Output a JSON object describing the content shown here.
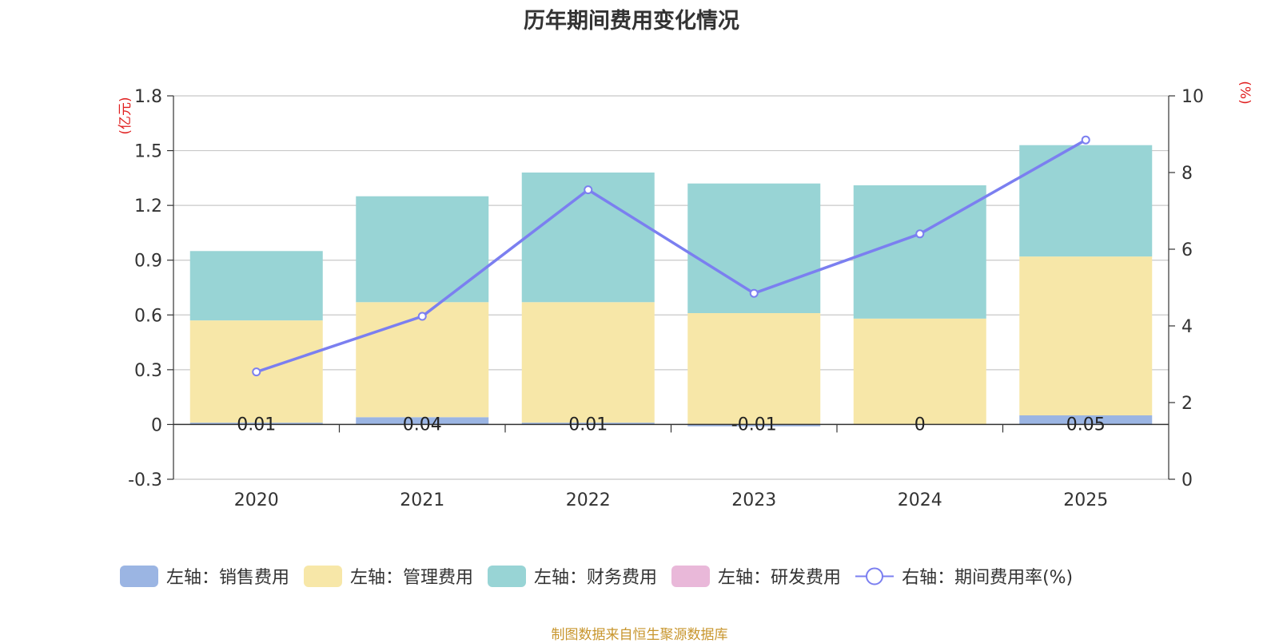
{
  "title": "历年期间费用变化情况",
  "source_note": "制图数据来自恒生聚源数据库",
  "chart_data": {
    "type": "bar",
    "stacked": true,
    "title": "历年期间费用变化情况",
    "categories": [
      "2020",
      "2021",
      "2022",
      "2023",
      "2024",
      "2025"
    ],
    "left_axis": {
      "unit_label": "(亿元)",
      "ylim": [
        -0.3,
        1.8
      ],
      "ticks": [
        -0.3,
        0,
        0.3,
        0.6,
        0.9,
        1.2,
        1.5,
        1.8
      ],
      "tick_labels": [
        "-0.3",
        "0",
        "0.3",
        "0.6",
        "0.9",
        "1.2",
        "1.5",
        "1.8"
      ]
    },
    "right_axis": {
      "unit_label": "(%)",
      "ylim": [
        0,
        10
      ],
      "ticks": [
        0,
        2,
        4,
        6,
        8,
        10
      ],
      "tick_labels": [
        "0",
        "2",
        "4",
        "6",
        "8",
        "10"
      ]
    },
    "series": [
      {
        "name": "左轴：销售费用",
        "kind": "bar",
        "color": "#9bb5e3",
        "values": [
          0.01,
          0.04,
          0.01,
          -0.01,
          0,
          0.05
        ],
        "data_labels": [
          "0.01",
          "0.04",
          "0.01",
          "-0.01",
          "0",
          "0.05"
        ]
      },
      {
        "name": "左轴：管理费用",
        "kind": "bar",
        "color": "#f7e7a8",
        "values": [
          0.56,
          0.63,
          0.66,
          0.61,
          0.58,
          0.87
        ]
      },
      {
        "name": "左轴：财务费用",
        "kind": "bar",
        "color": "#98d4d5",
        "values": [
          0.38,
          0.58,
          0.71,
          0.71,
          0.73,
          0.61
        ]
      },
      {
        "name": "左轴：研发费用",
        "kind": "bar",
        "color": "#e9b8d9",
        "values": [
          0,
          0,
          0,
          0,
          0,
          0
        ]
      },
      {
        "name": "右轴：期间费用率(%)",
        "kind": "line",
        "axis": "right",
        "color": "#7b7ff0",
        "values": [
          2.8,
          4.25,
          7.55,
          4.85,
          6.4,
          8.85
        ]
      }
    ],
    "grid": true,
    "legend_position": "bottom"
  }
}
